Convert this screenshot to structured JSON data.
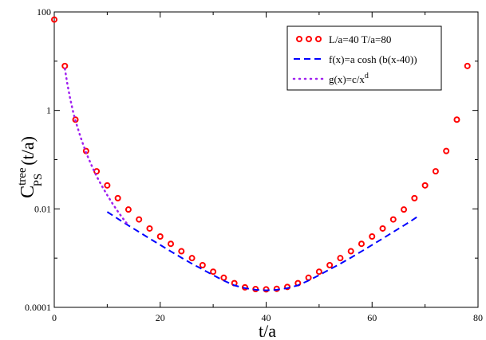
{
  "chart_data": {
    "type": "scatter",
    "xlabel": "t/a",
    "ylabel": {
      "main": "C",
      "sup": "tree",
      "sub": "PS",
      "tail": "(t/a)"
    },
    "xlim": [
      0,
      80
    ],
    "ylim": [
      0.0001,
      100
    ],
    "yscale": "log",
    "x_ticks": [
      0,
      20,
      40,
      60,
      80
    ],
    "x_tick_labels": [
      "0",
      "20",
      "40",
      "60",
      "80"
    ],
    "y_ticks": [
      0.0001,
      0.01,
      1,
      100
    ],
    "y_tick_labels": [
      "0.0001",
      "0.01",
      "1",
      "100"
    ],
    "grid": false,
    "legend_position": "top-right",
    "legend": [
      {
        "label": "L/a=40 T/a=80",
        "marker": "circle",
        "color": "#ff0000"
      },
      {
        "label": "f(x)=a cosh (b(x-40))",
        "style": "dashed",
        "color": "#0000ff"
      },
      {
        "label_main": "g(x)=c/x",
        "label_sup": "d",
        "style": "dotted",
        "color": "#a020f0"
      }
    ],
    "series": [
      {
        "name": "L/a=40 T/a=80",
        "style": "markers",
        "color": "#ff0000",
        "x": [
          0,
          2,
          4,
          6,
          8,
          10,
          12,
          14,
          16,
          18,
          20,
          22,
          24,
          26,
          28,
          30,
          32,
          34,
          36,
          38,
          40,
          42,
          44,
          46,
          48,
          50,
          52,
          54,
          56,
          58,
          60,
          62,
          64,
          66,
          68,
          70,
          72,
          74,
          76,
          78
        ],
        "y": [
          70,
          8,
          0.65,
          0.15,
          0.058,
          0.03,
          0.0165,
          0.0097,
          0.0061,
          0.004,
          0.00275,
          0.00195,
          0.00138,
          0.001,
          0.00072,
          0.00053,
          0.0004,
          0.00031,
          0.000255,
          0.000235,
          0.000232,
          0.000238,
          0.00026,
          0.00031,
          0.0004,
          0.00053,
          0.00072,
          0.001,
          0.00138,
          0.00195,
          0.00275,
          0.004,
          0.0061,
          0.0097,
          0.0165,
          0.03,
          0.058,
          0.15,
          0.65,
          8
        ]
      },
      {
        "name": "f(x)=a cosh (b(x-40))",
        "style": "dashed",
        "color": "#0000ff",
        "x": [
          10,
          12,
          14,
          16,
          18,
          20,
          22,
          24,
          26,
          28,
          30,
          32,
          34,
          36,
          38,
          40,
          42,
          44,
          46,
          48,
          50,
          52,
          54,
          56,
          58,
          60,
          62,
          64,
          66,
          68,
          69
        ],
        "y": [
          0.0087,
          0.0063,
          0.0046,
          0.0034,
          0.0025,
          0.00185,
          0.00137,
          0.00102,
          0.00077,
          0.00059,
          0.00045,
          0.00035,
          0.00028,
          0.000245,
          0.000228,
          0.000222,
          0.000228,
          0.000245,
          0.00028,
          0.00035,
          0.00045,
          0.00059,
          0.00077,
          0.00102,
          0.00137,
          0.00185,
          0.0025,
          0.0034,
          0.0046,
          0.0063,
          0.0075
        ]
      },
      {
        "name": "g(x)=c/x^d",
        "style": "dotted",
        "color": "#a020f0",
        "x": [
          2,
          2.5,
          3,
          3.5,
          4,
          5,
          6,
          7,
          8,
          9,
          10,
          11,
          12,
          13,
          14
        ],
        "y": [
          7,
          3.3,
          1.75,
          1.0,
          0.62,
          0.28,
          0.14,
          0.078,
          0.046,
          0.029,
          0.019,
          0.0128,
          0.0089,
          0.0063,
          0.0046
        ]
      }
    ]
  }
}
